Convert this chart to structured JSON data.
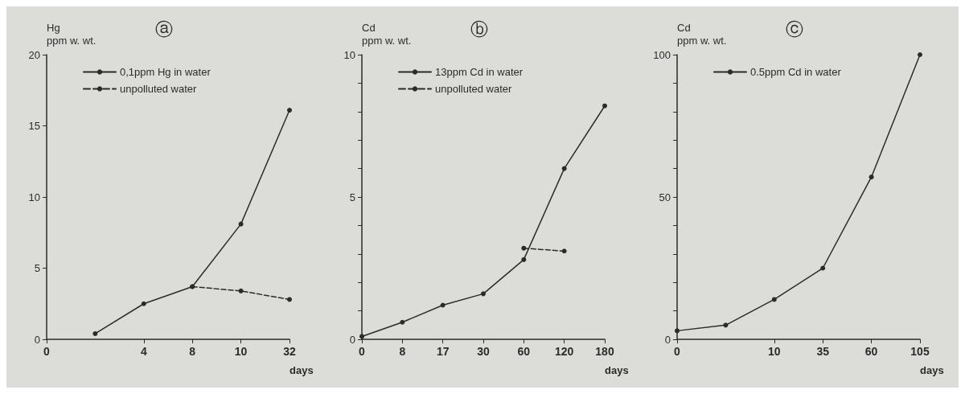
{
  "chart_data": [
    {
      "type": "line",
      "title": "ⓐ",
      "ylabel": "Hg\nppm w. wt.",
      "xlabel": "days",
      "categories": [
        "0",
        null,
        "4",
        "8",
        "10",
        "32"
      ],
      "ylim": [
        0,
        20
      ],
      "yticks": [
        0,
        5,
        10,
        15,
        20
      ],
      "legend": "top left",
      "marker": "circle",
      "grid": false,
      "series": [
        {
          "name": "0,1ppm Hg in water",
          "color": "#2b2b2b",
          "line_style": "solid",
          "values": [
            null,
            0.4,
            2.5,
            3.7,
            8.1,
            16.1
          ]
        },
        {
          "name": "unpolluted water",
          "color": "#2b2b2b",
          "line_style": "dashed",
          "values": [
            null,
            null,
            null,
            3.7,
            3.4,
            2.8
          ]
        }
      ]
    },
    {
      "type": "line",
      "title": "ⓑ",
      "ylabel": "Cd\nppm w. wt.",
      "xlabel": "days",
      "categories": [
        "0",
        "8",
        "17",
        "30",
        "60",
        "120",
        "180"
      ],
      "ylim": [
        0,
        10
      ],
      "yticks": [
        0,
        {
          "value": 1,
          "label": null
        },
        {
          "value": 2,
          "label": null
        },
        {
          "value": 3,
          "label": null
        },
        {
          "value": 4,
          "label": null
        },
        5,
        {
          "value": 6,
          "label": null
        },
        {
          "value": 7,
          "label": null
        },
        {
          "value": 8,
          "label": null
        },
        {
          "value": 9,
          "label": null
        },
        10
      ],
      "legend": "top left",
      "marker": "circle",
      "grid": false,
      "series": [
        {
          "name": "13ppm Cd in water",
          "color": "#2b2b2b",
          "line_style": "solid",
          "values": [
            0.1,
            0.6,
            1.2,
            1.6,
            2.8,
            6.0,
            8.2
          ]
        },
        {
          "name": "unpolluted water",
          "color": "#2b2b2b",
          "line_style": "dashed",
          "values": [
            null,
            null,
            null,
            null,
            3.2,
            3.1,
            null
          ]
        }
      ]
    },
    {
      "type": "line",
      "title": "ⓒ",
      "ylabel": "Cd\nppm w. wt.",
      "xlabel": "days",
      "categories": [
        "0",
        null,
        "10",
        "35",
        "60",
        "105"
      ],
      "ylim": [
        0,
        100
      ],
      "yticks": [
        0,
        {
          "value": 10,
          "label": null
        },
        {
          "value": 20,
          "label": null
        },
        {
          "value": 30,
          "label": null
        },
        {
          "value": 40,
          "label": null
        },
        50,
        {
          "value": 60,
          "label": null
        },
        {
          "value": 70,
          "label": null
        },
        {
          "value": 80,
          "label": null
        },
        {
          "value": 90,
          "label": null
        },
        100
      ],
      "legend": "top left",
      "marker": "circle",
      "grid": false,
      "series": [
        {
          "name": "0.5ppm Cd in water",
          "color": "#2b2b2b",
          "line_style": "solid",
          "values": [
            3,
            5,
            14,
            25,
            57,
            100
          ]
        }
      ]
    }
  ]
}
